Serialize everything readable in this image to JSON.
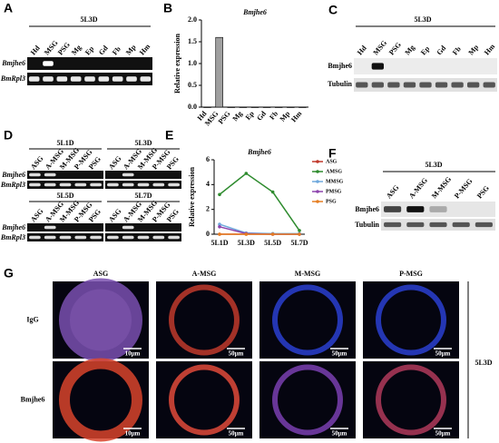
{
  "panels": {
    "A": {
      "panel_label": "A",
      "stage": "5L3D",
      "lanes": [
        "Hd",
        "MSG",
        "PSG",
        "Mg",
        "Ep",
        "Gd",
        "Fb",
        "Mp",
        "Hm"
      ],
      "rows": [
        "Bmjhe6",
        "BmRpl3"
      ]
    },
    "C": {
      "panel_label": "C",
      "stage": "5L3D",
      "lanes": [
        "Hd",
        "MSG",
        "PSG",
        "Mg",
        "Ep",
        "Gd",
        "Fb",
        "Mp",
        "Hm"
      ],
      "rows": [
        "Bmjhe6",
        "Tubulin"
      ]
    },
    "D": {
      "panel_label": "D",
      "stages": [
        "5L1D",
        "5L3D",
        "5L5D",
        "5L7D"
      ],
      "lanes": [
        "ASG",
        "A-MSG",
        "M-MSG",
        "P-MSG",
        "PSG"
      ],
      "rows": [
        "Bmjhe6",
        "BmRpl3"
      ]
    },
    "F": {
      "panel_label": "F",
      "stage": "5L3D",
      "lanes": [
        "ASG",
        "A-MSG",
        "M-MSG",
        "P-MSG",
        "PSG"
      ],
      "rows": [
        "Bmjhe6",
        "Tubulin"
      ]
    },
    "G": {
      "panel_label": "G",
      "columns": [
        "ASG",
        "A-MSG",
        "M-MSG",
        "P-MSG"
      ],
      "rows": [
        "IgG",
        "Bmjhe6"
      ],
      "scale_bars": [
        [
          "10μm",
          "50μm",
          "50μm",
          "50μm"
        ],
        [
          "10μm",
          "50μm",
          "50μm",
          "50μm"
        ]
      ],
      "stage": "5L3D"
    }
  },
  "chart_data": [
    {
      "type": "bar",
      "panel_label": "B",
      "title": "Bmjhe6",
      "y_label": "Relative expression",
      "categories": [
        "Hd",
        "MSG",
        "PSG",
        "Mg",
        "Ep",
        "Gd",
        "Fb",
        "Mp",
        "Hm"
      ],
      "values": [
        0,
        1.6,
        0,
        0,
        0,
        0,
        0,
        0,
        0
      ],
      "color": "#a0a0a0",
      "ylim": [
        0,
        2
      ],
      "yticks": [
        {
          "value": 0,
          "label": "0.0"
        },
        {
          "value": 0.5,
          "label": "0.5"
        },
        {
          "value": 1,
          "label": "1.0"
        },
        {
          "value": 1.5,
          "label": "1.5"
        },
        {
          "value": 2,
          "label": "2.0"
        }
      ]
    },
    {
      "type": "line",
      "panel_label": "E",
      "title": "Bmjhe6",
      "y_label": "Relative expression",
      "categories": [
        "5L1D",
        "5L3D",
        "5L5D",
        "5L7D"
      ],
      "series": [
        {
          "name": "ASG",
          "color": "#c0392b",
          "values": [
            0,
            0,
            0,
            0
          ]
        },
        {
          "name": "AMSG",
          "color": "#2e8b2e",
          "values": [
            3.2,
            4.9,
            3.4,
            0.3
          ]
        },
        {
          "name": "MMSG",
          "color": "#6fa8dc",
          "values": [
            0.8,
            0.1,
            0.05,
            0.05
          ]
        },
        {
          "name": "PMSG",
          "color": "#8e44ad",
          "values": [
            0.6,
            0.05,
            0,
            0
          ]
        },
        {
          "name": "PSG",
          "color": "#e67e22",
          "values": [
            0,
            0,
            0,
            0
          ]
        }
      ],
      "ylim": [
        0,
        6
      ],
      "yticks": [
        0,
        2,
        4,
        6
      ]
    }
  ]
}
